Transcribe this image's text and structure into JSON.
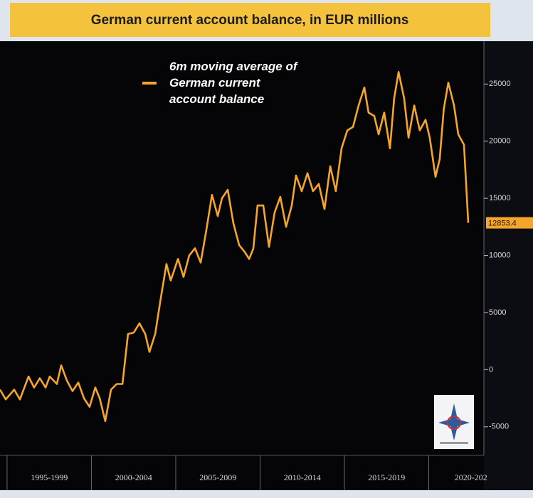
{
  "chart_data": {
    "type": "line",
    "title": "German current account balance, in EUR millions",
    "x": [
      1994.58,
      1994.92,
      1995.42,
      1995.76,
      1996.27,
      1996.6,
      1996.94,
      1997.28,
      1997.53,
      1997.95,
      1998.21,
      1998.54,
      1998.88,
      1999.22,
      1999.56,
      1999.89,
      2000.23,
      2000.49,
      2000.82,
      2001.16,
      2001.5,
      2001.84,
      2002.17,
      2002.51,
      2002.85,
      2003.19,
      2003.44,
      2003.78,
      2004.11,
      2004.45,
      2004.7,
      2005.13,
      2005.46,
      2005.8,
      2006.14,
      2006.48,
      2006.81,
      2007.15,
      2007.49,
      2007.74,
      2008.08,
      2008.42,
      2008.76,
      2009.09,
      2009.35,
      2009.6,
      2009.85,
      2010.19,
      2010.53,
      2010.86,
      2011.2,
      2011.54,
      2011.88,
      2012.13,
      2012.47,
      2012.81,
      2013.14,
      2013.48,
      2013.82,
      2014.16,
      2014.49,
      2014.83,
      2015.17,
      2015.51,
      2015.84,
      2016.18,
      2016.43,
      2016.77,
      2017.03,
      2017.36,
      2017.7,
      2017.95,
      2018.21,
      2018.54,
      2018.8,
      2019.14,
      2019.47,
      2019.81,
      2020.06,
      2020.4,
      2020.65,
      2020.89,
      2021.16,
      2021.5,
      2021.75,
      2022.09,
      2022.34
    ],
    "series": [
      {
        "name": "6m moving average of German current account balance",
        "color": "#f5a62a",
        "values": [
          -1750,
          -2600,
          -1750,
          -2600,
          -600,
          -1560,
          -750,
          -1560,
          -600,
          -1250,
          375,
          -940,
          -1875,
          -1125,
          -2500,
          -3250,
          -1560,
          -2500,
          -4500,
          -1750,
          -1250,
          -1250,
          3125,
          3250,
          4060,
          3125,
          1560,
          3125,
          6250,
          9250,
          7800,
          9700,
          8125,
          10000,
          10625,
          9375,
          12200,
          15300,
          13440,
          15000,
          15750,
          12800,
          10900,
          10300,
          9690,
          10600,
          14375,
          14375,
          10750,
          13750,
          15125,
          12500,
          14375,
          17000,
          15625,
          17200,
          15625,
          16250,
          14060,
          17800,
          15625,
          19375,
          20940,
          21250,
          23125,
          24700,
          22500,
          22200,
          20600,
          22500,
          19375,
          23750,
          26060,
          23750,
          20300,
          23125,
          20940,
          21875,
          20300,
          16875,
          18440,
          22800,
          25125,
          23125,
          20600,
          19690,
          12853.4
        ]
      }
    ],
    "xlim": [
      1994.58,
      2023.27
    ],
    "xticks": [
      {
        "value": 1997.5,
        "label": "1995-1999"
      },
      {
        "value": 2002.5,
        "label": "2000-2004"
      },
      {
        "value": 2007.5,
        "label": "2005-2009"
      },
      {
        "value": 2012.5,
        "label": "2010-2014"
      },
      {
        "value": 2017.5,
        "label": "2015-2019"
      },
      {
        "value": 2022.5,
        "label": "2020-202"
      }
    ],
    "ylim": [
      -7500,
      28750
    ],
    "yticks": [
      -5000,
      0,
      5000,
      10000,
      15000,
      20000,
      25000
    ]
  }
}
